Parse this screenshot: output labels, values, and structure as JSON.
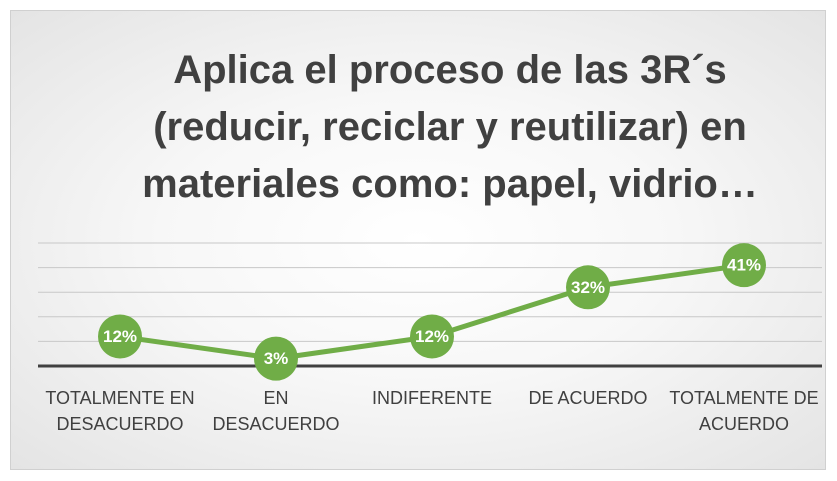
{
  "chart_data": {
    "type": "line",
    "title": "Aplica el proceso de las 3R´s (reducir, reciclar y reutilizar) en materiales como: papel, vidrio…",
    "categories": [
      "TOTALMENTE EN DESACUERDO",
      "EN DESACUERDO",
      "INDIFERENTE",
      "DE ACUERDO",
      "TOTALMENTE DE ACUERDO"
    ],
    "values": [
      12,
      3,
      12,
      32,
      41
    ],
    "value_labels": [
      "12%",
      "3%",
      "12%",
      "32%",
      "41%"
    ],
    "color": "#70ad47",
    "ylim": [
      0,
      50
    ],
    "yticks": [
      0,
      10,
      20,
      30,
      40,
      50
    ],
    "grid": true
  }
}
